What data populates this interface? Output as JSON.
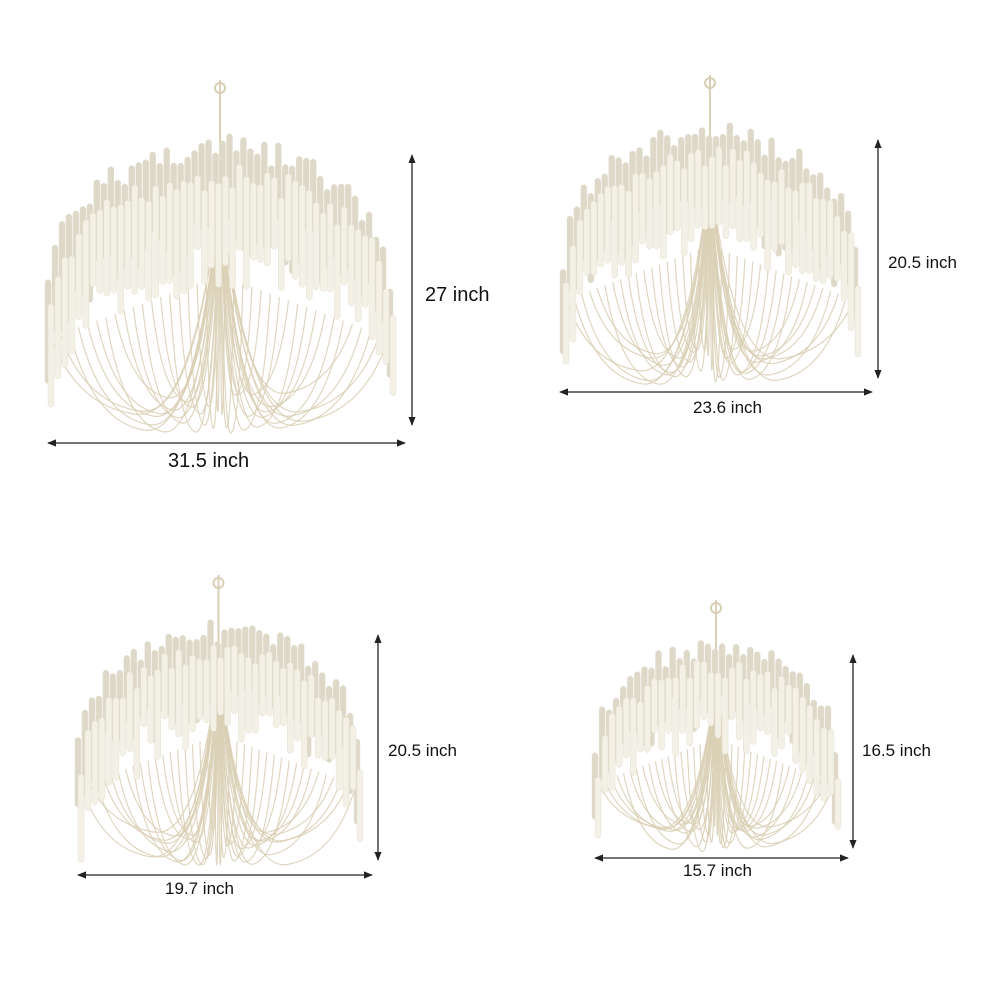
{
  "products": [
    {
      "height_label": "27 inch",
      "width_label": "31.5 inch"
    },
    {
      "height_label": "20.5 inch",
      "width_label": "23.6 inch"
    },
    {
      "height_label": "20.5 inch",
      "width_label": "19.7 inch"
    },
    {
      "height_label": "16.5 inch",
      "width_label": "15.7 inch"
    }
  ],
  "colors": {
    "tube": "#f3f0e6",
    "tube_shade": "#ddd8c8",
    "wire": "#d9cfb4",
    "arrow": "#222222"
  }
}
